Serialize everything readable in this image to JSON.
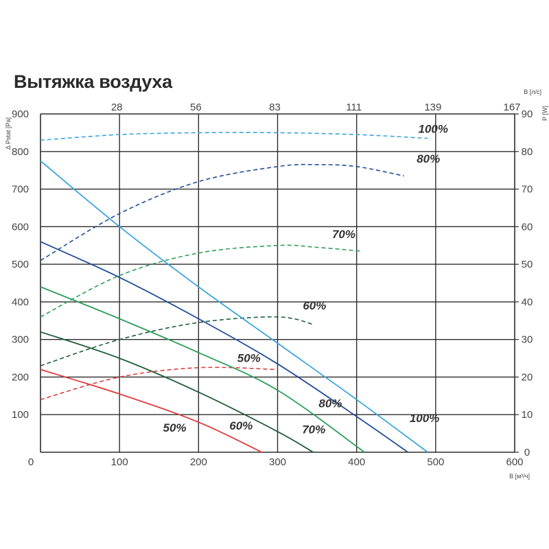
{
  "chart_data": {
    "type": "line",
    "title": "Вытяжка воздуха",
    "x_axis_bottom": {
      "label": "В [м³/ч]",
      "ticks": [
        "0",
        "100",
        "200",
        "300",
        "400",
        "500",
        "600"
      ],
      "range": [
        0,
        600
      ]
    },
    "x_axis_top": {
      "label": "В [л/с]",
      "ticks": [
        "28",
        "56",
        "83",
        "111",
        "139",
        "167"
      ]
    },
    "y_axis_left": {
      "label": "Δ Pstat [Pa]",
      "ticks": [
        "100",
        "200",
        "300",
        "400",
        "500",
        "600",
        "700",
        "800",
        "900"
      ],
      "range": [
        0,
        900
      ]
    },
    "y_axis_right": {
      "label": "P [W]",
      "ticks": [
        "0",
        "10",
        "20",
        "30",
        "40",
        "50",
        "60",
        "70",
        "80",
        "90"
      ],
      "range": [
        0,
        90
      ]
    },
    "grid": true,
    "pressure_series": [
      {
        "label": "100%",
        "color": "#3aa6dd",
        "x": [
          0,
          100,
          200,
          300,
          400,
          490
        ],
        "y": [
          775,
          600,
          440,
          290,
          140,
          0
        ]
      },
      {
        "label": "80%",
        "color": "#1f4e9a",
        "x": [
          0,
          100,
          200,
          300,
          400,
          465
        ],
        "y": [
          560,
          465,
          355,
          235,
          95,
          0
        ]
      },
      {
        "label": "70%",
        "color": "#2e9e58",
        "x": [
          0,
          100,
          200,
          300,
          410
        ],
        "y": [
          440,
          355,
          265,
          165,
          0
        ]
      },
      {
        "label": "60%",
        "color": "#1e5e3a",
        "x": [
          0,
          100,
          200,
          300,
          345
        ],
        "y": [
          320,
          250,
          160,
          55,
          0
        ]
      },
      {
        "label": "50%",
        "color": "#e03b3b",
        "x": [
          0,
          100,
          200,
          280
        ],
        "y": [
          220,
          155,
          80,
          0
        ]
      }
    ],
    "power_series": [
      {
        "label": "100%",
        "color": "#3aa6dd",
        "x": [
          0,
          100,
          200,
          300,
          400,
          490
        ],
        "y": [
          83,
          84.5,
          85,
          85,
          84.5,
          83.5
        ]
      },
      {
        "label": "80%",
        "color": "#1f4e9a",
        "x": [
          0,
          100,
          200,
          300,
          350,
          400,
          460
        ],
        "y": [
          51,
          63.5,
          72,
          76,
          76.5,
          76,
          73.5
        ]
      },
      {
        "label": "70%",
        "color": "#2e9e58",
        "x": [
          0,
          100,
          200,
          300,
          350,
          405
        ],
        "y": [
          36,
          47,
          53,
          55,
          54.5,
          53.5
        ]
      },
      {
        "label": "60%",
        "color": "#1e5e3a",
        "x": [
          0,
          100,
          200,
          300,
          345
        ],
        "y": [
          23,
          30,
          34.5,
          36,
          34
        ]
      },
      {
        "label": "50%",
        "color": "#e03b3b",
        "x": [
          0,
          100,
          200,
          300
        ],
        "y": [
          14,
          20,
          22.5,
          22
        ]
      }
    ],
    "curve_labels": {
      "power": [
        {
          "text": "100%",
          "x": 478,
          "y": 85
        },
        {
          "text": "80%",
          "x": 476,
          "y": 77
        },
        {
          "text": "70%",
          "x": 369,
          "y": 57
        },
        {
          "text": "60%",
          "x": 332,
          "y": 38
        },
        {
          "text": "50%",
          "x": 249,
          "y": 24
        }
      ],
      "pressure": [
        {
          "text": "100%",
          "x": 467,
          "y": 80
        },
        {
          "text": "80%",
          "x": 352,
          "y": 120
        },
        {
          "text": "70%",
          "x": 331,
          "y": 50
        },
        {
          "text": "60%",
          "x": 239,
          "y": 60
        },
        {
          "text": "50%",
          "x": 155,
          "y": 55
        }
      ]
    }
  }
}
